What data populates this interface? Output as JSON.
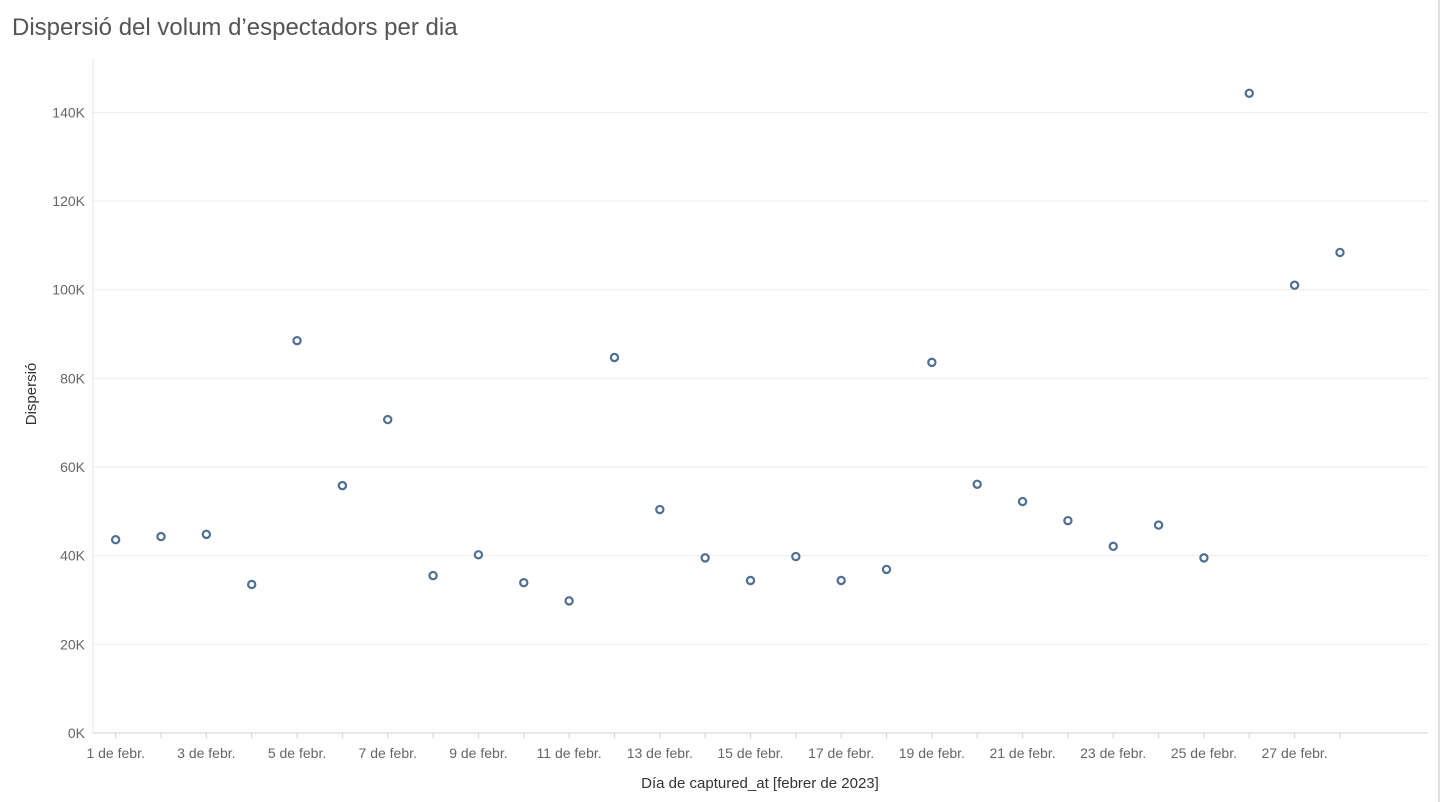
{
  "chart_data": {
    "type": "scatter",
    "title": "Dispersió del volum d’espectadors per dia",
    "xlabel": "Día de captured_at [febrer de 2023]",
    "ylabel": "Dispersió",
    "ylim": [
      0,
      150000
    ],
    "yticks": [
      0,
      20000,
      40000,
      60000,
      80000,
      100000,
      120000,
      140000
    ],
    "ytick_labels": [
      "0K",
      "20K",
      "40K",
      "60K",
      "80K",
      "100K",
      "120K",
      "140K"
    ],
    "x_domain": [
      0.5,
      29.5
    ],
    "xticks": [
      1,
      3,
      5,
      7,
      9,
      11,
      13,
      15,
      17,
      19,
      21,
      23,
      25,
      27
    ],
    "xtick_labels": [
      "1 de febr.",
      "3 de febr.",
      "5 de febr.",
      "7 de febr.",
      "9 de febr.",
      "11 de febr.",
      "13 de febr.",
      "15 de febr.",
      "17 de febr.",
      "19 de febr.",
      "21 de febr.",
      "23 de febr.",
      "25 de febr.",
      "27 de febr."
    ],
    "grid": true,
    "marker_color": "#4e6f92",
    "points": [
      {
        "x": 1,
        "y": 43600
      },
      {
        "x": 2,
        "y": 44300
      },
      {
        "x": 3,
        "y": 44800
      },
      {
        "x": 4,
        "y": 33500
      },
      {
        "x": 5,
        "y": 88500
      },
      {
        "x": 6,
        "y": 55800
      },
      {
        "x": 7,
        "y": 70700
      },
      {
        "x": 8,
        "y": 35500
      },
      {
        "x": 9,
        "y": 40200
      },
      {
        "x": 10,
        "y": 33900
      },
      {
        "x": 11,
        "y": 29800
      },
      {
        "x": 12,
        "y": 84700
      },
      {
        "x": 13,
        "y": 50400
      },
      {
        "x": 14,
        "y": 39500
      },
      {
        "x": 15,
        "y": 34400
      },
      {
        "x": 16,
        "y": 39800
      },
      {
        "x": 17,
        "y": 34400
      },
      {
        "x": 18,
        "y": 36900
      },
      {
        "x": 19,
        "y": 83600
      },
      {
        "x": 20,
        "y": 56100
      },
      {
        "x": 21,
        "y": 52200
      },
      {
        "x": 22,
        "y": 47900
      },
      {
        "x": 23,
        "y": 42100
      },
      {
        "x": 24,
        "y": 46900
      },
      {
        "x": 25,
        "y": 39500
      },
      {
        "x": 26,
        "y": 144300
      },
      {
        "x": 27,
        "y": 101000
      },
      {
        "x": 28,
        "y": 108400
      }
    ]
  }
}
